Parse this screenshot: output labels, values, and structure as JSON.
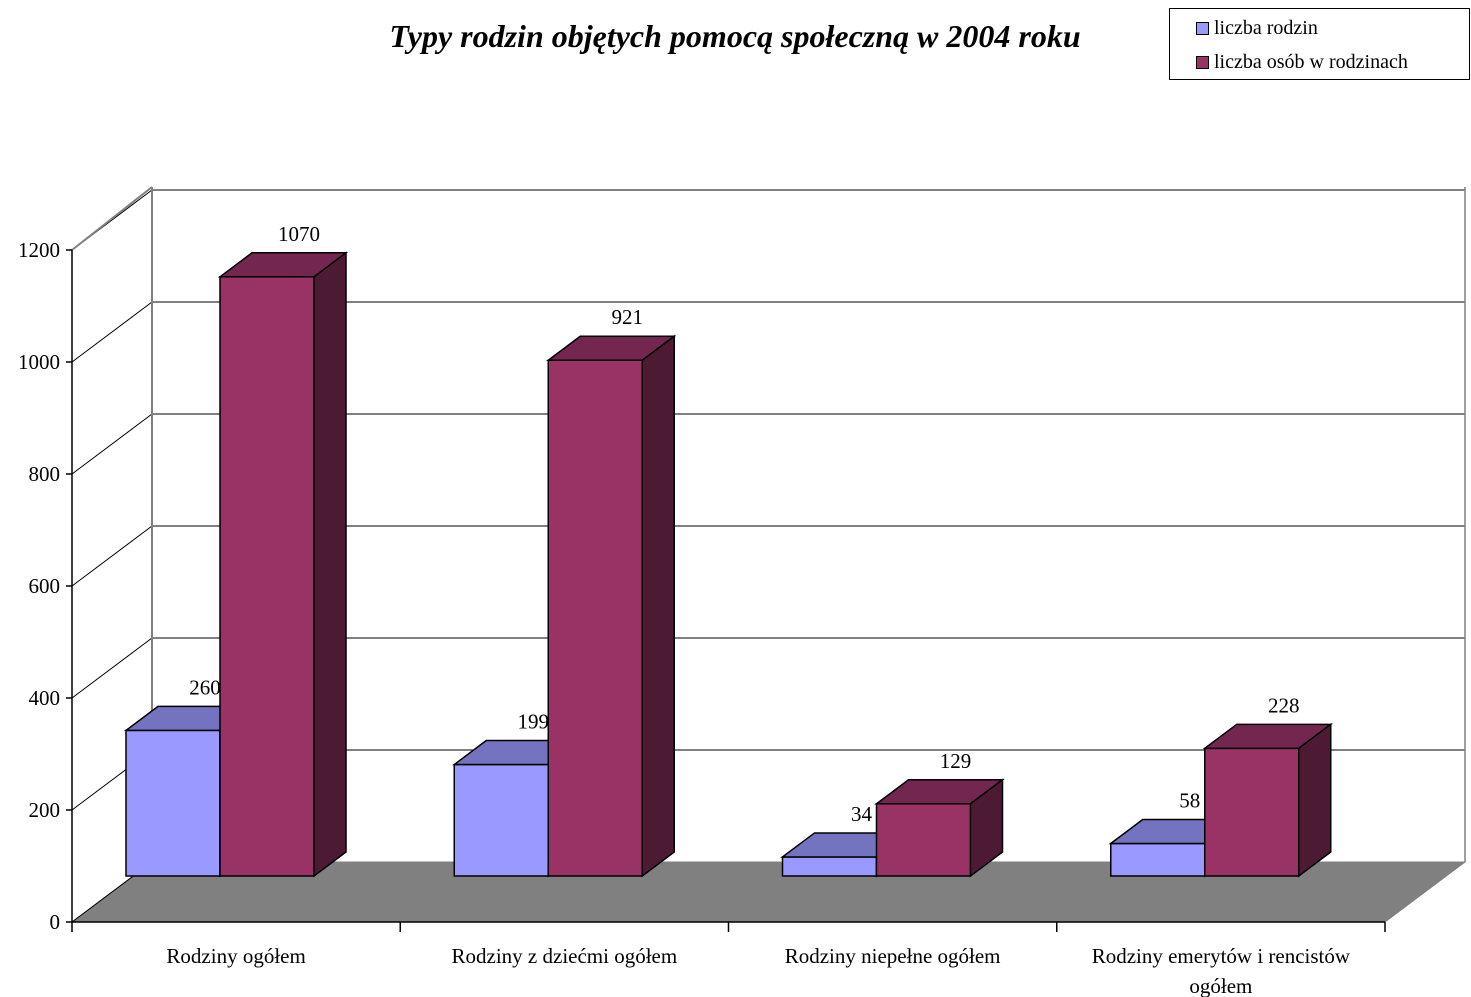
{
  "chart_data": {
    "type": "bar",
    "title": "Typy rodzin objętych pomocą społeczną w 2004 roku",
    "categories": [
      "Rodziny ogółem",
      "Rodziny z dziećmi ogółem",
      "Rodziny niepełne ogółem",
      "Rodziny emerytów i rencistów ogółem"
    ],
    "series": [
      {
        "name": "liczba rodzin",
        "values": [
          260,
          199,
          34,
          58
        ],
        "color": "#9999ff",
        "top_color": "#7373bf",
        "side_color": "#4d4d80"
      },
      {
        "name": "liczba osób w rodzinach",
        "values": [
          1070,
          921,
          129,
          228
        ],
        "color": "#993366",
        "top_color": "#732650",
        "side_color": "#4d1a33"
      }
    ],
    "ylim": [
      0,
      1200
    ],
    "yticks": [
      "0",
      "200",
      "400",
      "600",
      "800",
      "1000",
      "1200"
    ],
    "grid": true,
    "legend": "top-right",
    "floor_color": "#808080",
    "three_d": true
  }
}
